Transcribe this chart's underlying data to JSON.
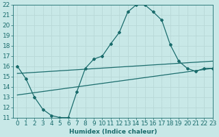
{
  "xlabel": "Humidex (Indice chaleur)",
  "xlim": [
    -0.5,
    23
  ],
  "ylim": [
    11,
    22
  ],
  "xticks": [
    0,
    1,
    2,
    3,
    4,
    5,
    6,
    7,
    8,
    9,
    10,
    11,
    12,
    13,
    14,
    15,
    16,
    17,
    18,
    19,
    20,
    21,
    22,
    23
  ],
  "yticks": [
    11,
    12,
    13,
    14,
    15,
    16,
    17,
    18,
    19,
    20,
    21,
    22
  ],
  "background_color": "#c8e8e8",
  "line_color": "#1a6b6b",
  "grid_color": "#b8d8d8",
  "curve1_x": [
    0,
    1,
    2,
    3,
    4,
    5,
    6,
    7,
    8,
    9,
    10,
    11,
    12,
    13,
    14,
    15,
    16,
    17,
    18,
    19,
    20,
    21,
    22,
    23
  ],
  "curve1_y": [
    16.0,
    14.8,
    13.0,
    11.8,
    11.2,
    11.0,
    11.0,
    13.5,
    15.8,
    16.7,
    17.0,
    18.2,
    19.3,
    21.3,
    22.0,
    22.0,
    21.3,
    20.5,
    18.1,
    16.5,
    15.8,
    15.5,
    15.8,
    15.8
  ],
  "line1_x": [
    0,
    23
  ],
  "line1_y": [
    15.3,
    16.5
  ],
  "line2_x": [
    0,
    23
  ],
  "line2_y": [
    13.2,
    15.8
  ],
  "font_size": 6.5
}
